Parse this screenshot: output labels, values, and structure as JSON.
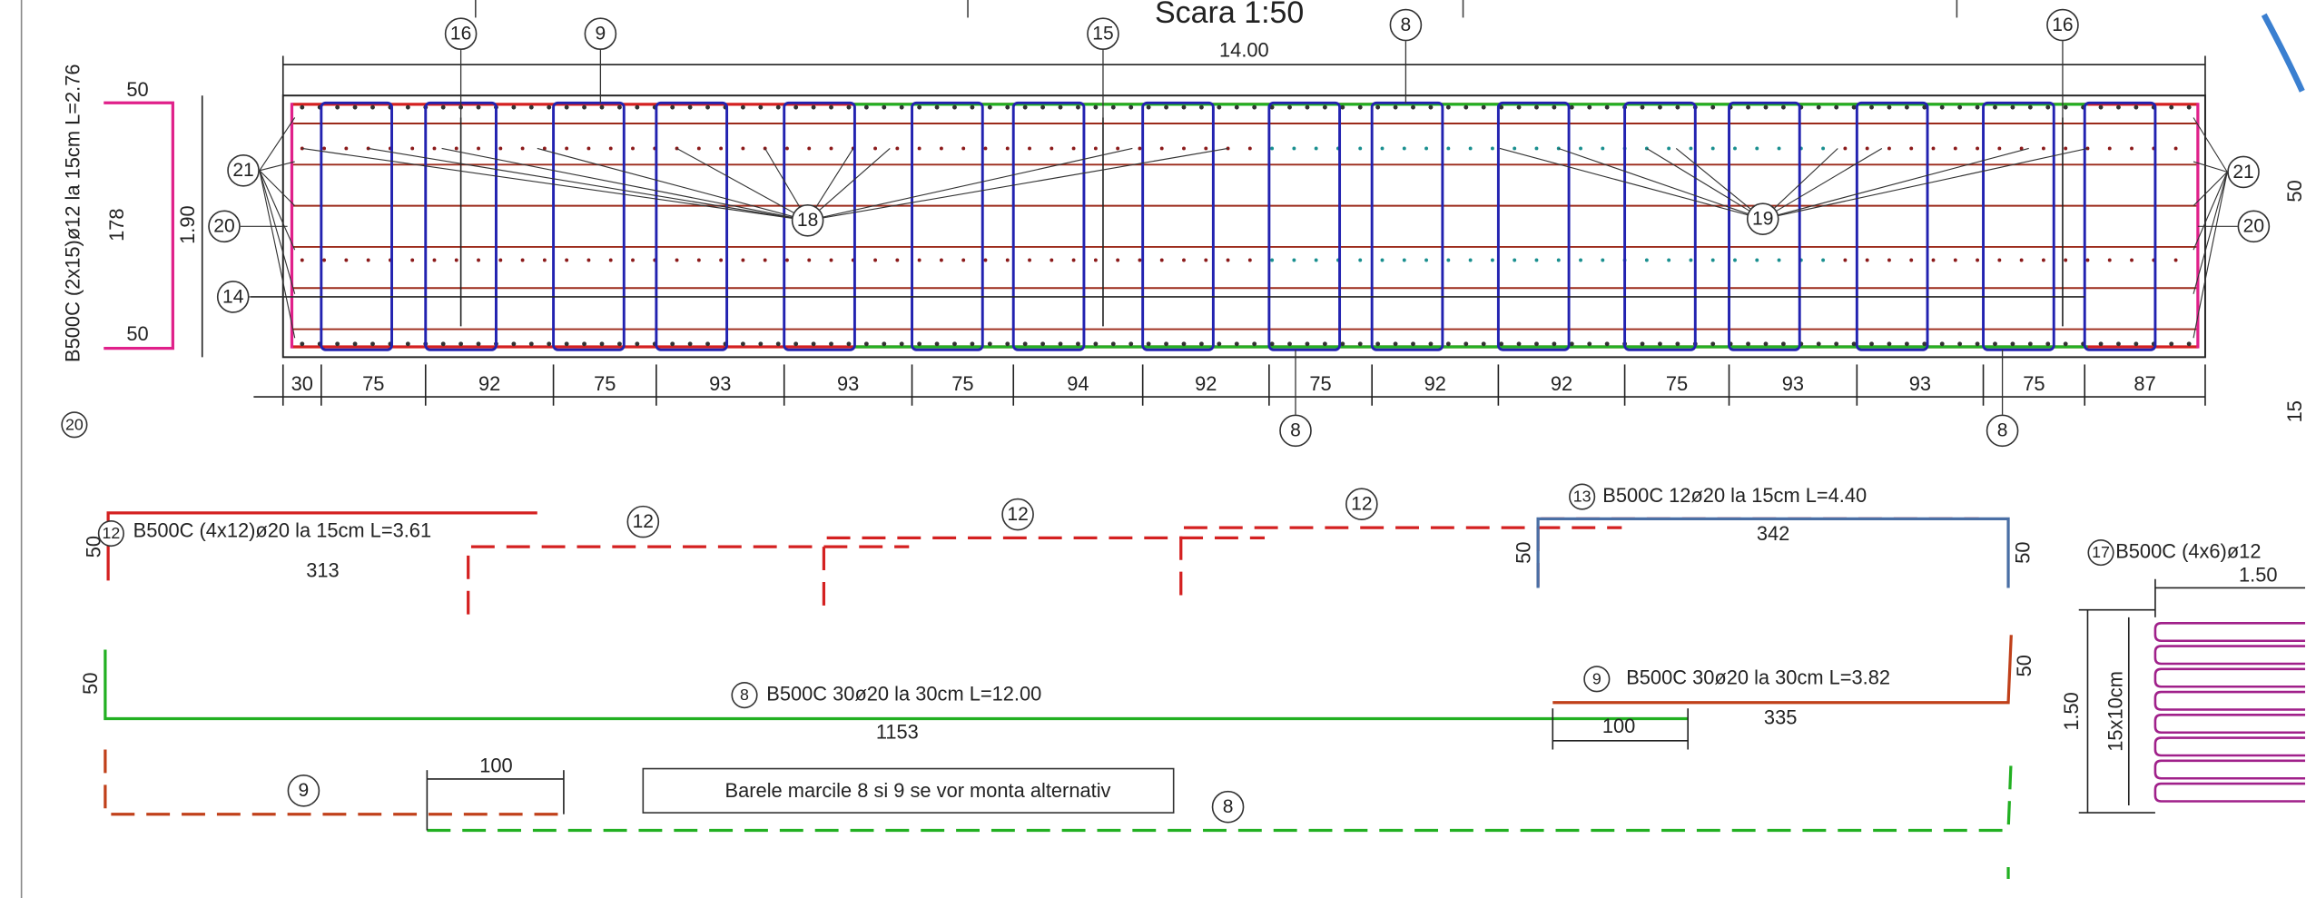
{
  "title": "Scara 1:50",
  "beam": {
    "length": "14.00",
    "height": "1.90",
    "spacings": [
      "30",
      "75",
      "92",
      "75",
      "93",
      "93",
      "75",
      "94",
      "92",
      "75",
      "92",
      "92",
      "75",
      "93",
      "93",
      "75",
      "87"
    ]
  },
  "bubbles": [
    "16",
    "9",
    "15",
    "8",
    "16",
    "21",
    "20",
    "14",
    "18",
    "19",
    "21",
    "20",
    "8",
    "8",
    "12",
    "12",
    "12",
    "12",
    "13",
    "8",
    "9",
    "9",
    "8",
    "17",
    "20"
  ],
  "bar20": {
    "label": "B500C (2x15)ø12 la 15cm L=2.76",
    "dims": [
      "50",
      "178",
      "50"
    ]
  },
  "bar12": {
    "label": "B500C (4x12)ø20 la 15cm L=3.61",
    "length": "313",
    "hook": "50"
  },
  "bar13": {
    "label": "B500C 12ø20 la 15cm L=4.40",
    "length": "342",
    "hooks": [
      "50",
      "50"
    ]
  },
  "bar8": {
    "label": "B500C 30ø20 la 30cm L=12.00",
    "length": "1153",
    "hook": "50"
  },
  "bar9": {
    "label": "B500C 30ø20 la 30cm L=3.82",
    "length": "335",
    "hook": "50",
    "laps": [
      "100",
      "100"
    ]
  },
  "note": "Barele marcile 8 si 9 se vor monta alternativ",
  "bar17": {
    "label": "B500C (4x6)ø12",
    "width": "1.50",
    "height": "1.50",
    "spacing": "15x10cm"
  },
  "edge": [
    "50",
    "15"
  ]
}
